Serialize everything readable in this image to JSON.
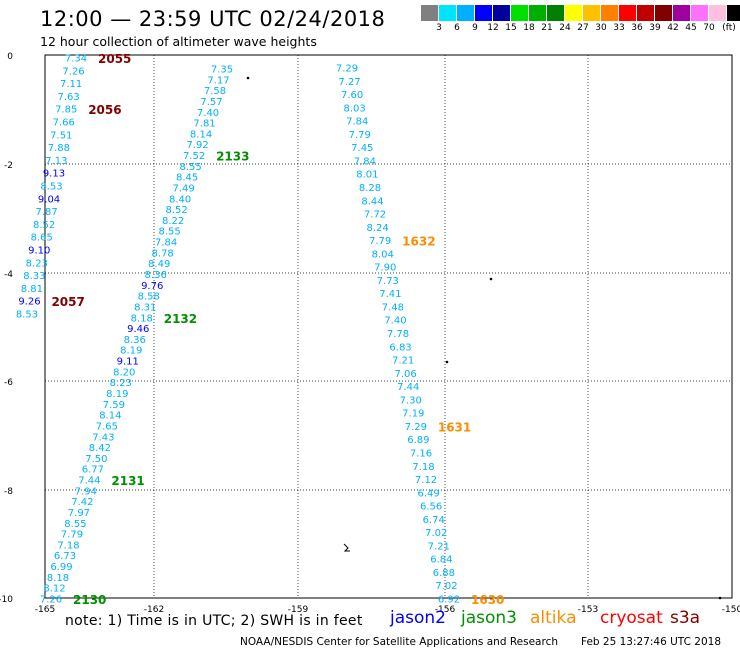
{
  "header": {
    "title": "12:00 — 23:59 UTC 02/24/2018",
    "subtitle": "12 hour collection of altimeter wave heights"
  },
  "color_scale": {
    "unit_label": "(ft)",
    "colors": [
      "#808080",
      "#00e5ff",
      "#00b0ff",
      "#0000ff",
      "#0000a0",
      "#00e000",
      "#00b000",
      "#008000",
      "#ffff00",
      "#ffc000",
      "#ff8000",
      "#ff0000",
      "#c00000",
      "#800000",
      "#a000a0",
      "#ff70ff",
      "#ffc0e0",
      "#000000"
    ],
    "labels": [
      "3",
      "6",
      "9",
      "12",
      "15",
      "18",
      "21",
      "24",
      "27",
      "30",
      "33",
      "36",
      "39",
      "42",
      "45",
      "70"
    ]
  },
  "map": {
    "x_ticks": [
      "-165",
      "-162",
      "-159",
      "-156",
      "-153",
      "-150"
    ],
    "y_ticks": [
      "0",
      "-2",
      "-4",
      "-6",
      "-8",
      "-10"
    ]
  },
  "track_labels": {
    "jason2": "#0000ff",
    "jason3": "#009000",
    "altika": "#ff8c00",
    "cryosat": "#ff0000",
    "s3a": "#800000"
  },
  "tracks": [
    {
      "name": "track-a",
      "values": [
        "7.34",
        "7.26",
        "7.11",
        "7.63",
        "7.85",
        "7.66",
        "7.51",
        "7.88",
        "7.13",
        "9.13",
        "8.53",
        "9.04",
        "7.87",
        "8.52",
        "8.65",
        "9.10",
        "8.23",
        "8.33",
        "8.81",
        "9.26",
        "8.53"
      ],
      "time_labels": [
        {
          "text": "2055",
          "sat": "s3a",
          "index": 0
        },
        {
          "text": "2056",
          "sat": "s3a",
          "index": 4
        },
        {
          "text": "2057",
          "sat": "s3a",
          "index": 19
        }
      ]
    },
    {
      "name": "track-b",
      "values": [
        "7.35",
        "7.17",
        "7.58",
        "7.57",
        "7.40",
        "7.81",
        "8.14",
        "7.92",
        "7.52",
        "8.55",
        "8.45",
        "7.49",
        "8.40",
        "8.52",
        "8.22",
        "8.55",
        "7.84",
        "8.78",
        "8.49",
        "8.36",
        "9.76",
        "8.58",
        "8.31",
        "8.18",
        "9.46",
        "8.36",
        "8.19",
        "9.11",
        "8.20",
        "8.23",
        "8.19",
        "7.59",
        "8.14",
        "7.65",
        "7.43",
        "8.42",
        "7.50",
        "6.77",
        "7.44",
        "7.94",
        "7.42",
        "7.97",
        "8.55",
        "7.79",
        "7.18",
        "6.73",
        "6.99",
        "8.18",
        "8.12",
        "7.26"
      ],
      "time_labels": [
        {
          "text": "2133",
          "sat": "jason3",
          "index": 8
        },
        {
          "text": "2132",
          "sat": "jason3",
          "index": 23
        },
        {
          "text": "2131",
          "sat": "jason3",
          "index": 38
        },
        {
          "text": "2130",
          "sat": "jason3",
          "index": 49
        }
      ]
    },
    {
      "name": "track-c",
      "values": [
        "7.29",
        "7.27",
        "7.60",
        "8.03",
        "7.84",
        "7.79",
        "7.45",
        "7.84",
        "8.01",
        "8.28",
        "8.44",
        "7.72",
        "8.24",
        "7.79",
        "8.04",
        "7.90",
        "7.73",
        "7.41",
        "7.48",
        "7.40",
        "7.78",
        "6.83",
        "7.21",
        "7.06",
        "7.44",
        "7.30",
        "7.19",
        "7.29",
        "6.89",
        "7.16",
        "7.18",
        "7.12",
        "6.49",
        "6.56",
        "6.74",
        "7.02",
        "7.21",
        "6.84",
        "6.88",
        "7.02",
        "6.92"
      ],
      "time_labels": [
        {
          "text": "1632",
          "sat": "altika",
          "index": 13
        },
        {
          "text": "1631",
          "sat": "altika",
          "index": 27
        },
        {
          "text": "1630",
          "sat": "altika",
          "index": 40
        }
      ]
    }
  ],
  "satellite_legend": [
    {
      "text": "jason2",
      "sat": "jason2"
    },
    {
      "text": "jason3",
      "sat": "jason3"
    },
    {
      "text": "altika",
      "sat": "altika"
    },
    {
      "text": "cryosat",
      "sat": "cryosat"
    },
    {
      "text": "s3a",
      "sat": "s3a"
    }
  ],
  "note": "note: 1) Time is in UTC; 2) SWH is in feet",
  "footer": {
    "credit": "NOAA/NESDIS Center for Satellite Applications and Research",
    "timestamp": "Feb 25 13:27:46 UTC 2018"
  }
}
